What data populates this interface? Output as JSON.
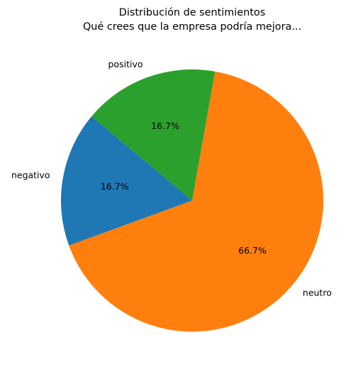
{
  "chart_data": {
    "type": "pie",
    "title": "Distribución de sentimientos",
    "subtitle": "Qué crees que la empresa podría mejora...",
    "categories": [
      "negativo",
      "neutro",
      "positivo"
    ],
    "values": [
      16.7,
      66.7,
      16.7
    ],
    "percent_labels": [
      "16.7%",
      "66.7%",
      "16.7%"
    ],
    "colors": [
      "#1f77b4",
      "#ff7f0e",
      "#2ca02c"
    ],
    "start_angle_deg": 140,
    "direction": "counterclockwise",
    "legend": "none",
    "grid": false
  }
}
